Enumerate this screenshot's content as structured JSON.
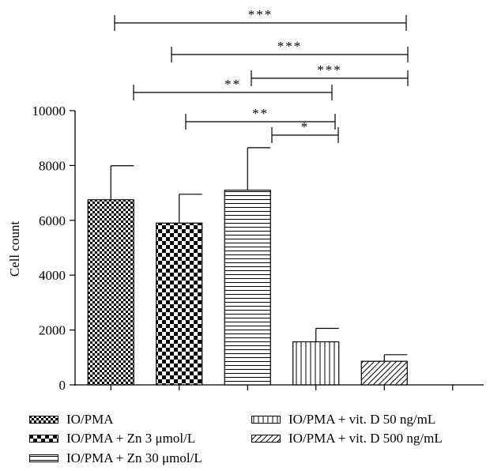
{
  "chart_data": {
    "type": "bar",
    "ylabel": "Cell count",
    "ylim": [
      0,
      10000
    ],
    "yticks": [
      0,
      2000,
      4000,
      6000,
      8000,
      10000
    ],
    "categories": [
      "IO/PMA",
      "IO/PMA + Zn 3 μmol/L",
      "IO/PMA + Zn 30 μmol/L",
      "IO/PMA + vit. D 50 ng/mL",
      "IO/PMA + vit. D 500 ng/mL"
    ],
    "values": [
      6750,
      5900,
      7100,
      1570,
      860
    ],
    "errors": [
      1240,
      1050,
      1550,
      490,
      240
    ],
    "patterns": [
      "dense-checker",
      "checker",
      "horizontal-lines",
      "vertical-lines",
      "diagonal-lines"
    ],
    "significance": [
      {
        "from": 0,
        "to": 4,
        "label": "***"
      },
      {
        "from": 1,
        "to": 4,
        "label": "***"
      },
      {
        "from": 2,
        "to": 4,
        "label": "***"
      },
      {
        "from": 0,
        "to": 3,
        "label": "**"
      },
      {
        "from": 1,
        "to": 3,
        "label": "**"
      },
      {
        "from": 2,
        "to": 3,
        "label": "*"
      }
    ]
  },
  "legend": [
    {
      "label": "IO/PMA",
      "pattern": "dense-checker"
    },
    {
      "label": "IO/PMA + Zn 3 μmol/L",
      "pattern": "checker"
    },
    {
      "label": "IO/PMA + Zn 30 μmol/L",
      "pattern": "horizontal-lines"
    },
    {
      "label": "IO/PMA + vit. D 50 ng/mL",
      "pattern": "vertical-lines"
    },
    {
      "label": "IO/PMA + vit. D 500 ng/mL",
      "pattern": "diagonal-lines"
    }
  ]
}
